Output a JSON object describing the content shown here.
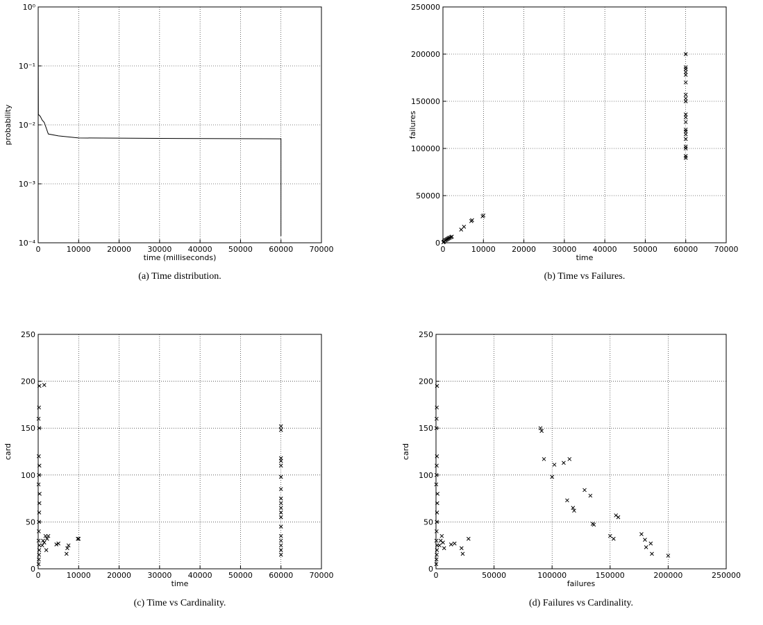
{
  "chart_data": [
    {
      "type": "line",
      "title": "(a) Time distribution.",
      "xlabel": "time (milliseconds)",
      "ylabel": "probability",
      "x": [
        0,
        0,
        50,
        500,
        1000,
        1500,
        2500,
        5000,
        10000,
        30000,
        60000,
        60000
      ],
      "values": [
        1,
        0.5,
        0.015,
        0.014,
        0.012,
        0.011,
        0.007,
        0.0065,
        0.006,
        0.0059,
        0.0058,
        0.00013
      ],
      "color": "#000000",
      "xlim": [
        0,
        70000
      ],
      "ylim": [
        0.0001,
        1
      ],
      "ylog": true,
      "grid": true,
      "xticks": [
        0,
        10000,
        20000,
        30000,
        40000,
        50000,
        60000,
        70000
      ],
      "yticks": [
        {
          "value": 0.0001,
          "label": "10⁻⁴"
        },
        {
          "value": 0.001,
          "label": "10⁻³"
        },
        {
          "value": 0.01,
          "label": "10⁻²"
        },
        {
          "value": 0.1,
          "label": "10⁻¹"
        },
        {
          "value": 1,
          "label": "10⁰"
        }
      ]
    },
    {
      "type": "scatter",
      "title": "(b) Time vs Failures.",
      "xlabel": "time",
      "ylabel": "failures",
      "x": [
        100,
        200,
        300,
        500,
        700,
        900,
        1100,
        1300,
        1500,
        1700,
        2000,
        2200,
        4500,
        5200,
        7000,
        7200,
        9800,
        10000,
        60000,
        60000,
        60000,
        60000,
        60000,
        60000,
        60000,
        60000,
        60000,
        60000,
        60000,
        60000,
        60000,
        60000,
        60000,
        60000,
        60000,
        60000,
        60000,
        60000
      ],
      "values": [
        500,
        1000,
        1500,
        2500,
        3000,
        3500,
        4000,
        4500,
        5000,
        5500,
        6000,
        6500,
        14000,
        17000,
        23000,
        24000,
        28000,
        29000,
        90000,
        92000,
        100000,
        102000,
        110000,
        115000,
        118000,
        120000,
        128000,
        133000,
        136000,
        150000,
        153000,
        157000,
        170000,
        178000,
        181000,
        184000,
        186000,
        200000
      ],
      "color": "#000000",
      "xlim": [
        0,
        70000
      ],
      "ylim": [
        0,
        250000
      ],
      "grid": true,
      "xticks": [
        0,
        10000,
        20000,
        30000,
        40000,
        50000,
        60000,
        70000
      ],
      "yticks": [
        0,
        50000,
        100000,
        150000,
        200000,
        250000
      ]
    },
    {
      "type": "scatter",
      "title": "(c) Time vs Cardinality.",
      "xlabel": "time",
      "ylabel": "card",
      "x": [
        100,
        150,
        200,
        250,
        300,
        100,
        150,
        200,
        250,
        300,
        350,
        100,
        200,
        300,
        150,
        250,
        100,
        200,
        300,
        1000,
        1200,
        1500,
        1800,
        2000,
        2200,
        2500,
        1500,
        4500,
        5000,
        7000,
        7200,
        7500,
        9800,
        10000,
        60000,
        60000,
        60000,
        60000,
        60000,
        60000,
        60000,
        60000,
        60000,
        60000,
        60000,
        60000,
        60000,
        60000,
        60000,
        60000,
        60000,
        60000
      ],
      "values": [
        5,
        10,
        15,
        20,
        25,
        30,
        40,
        50,
        60,
        70,
        80,
        90,
        100,
        110,
        120,
        150,
        160,
        172,
        195,
        25,
        30,
        28,
        35,
        20,
        32,
        35,
        196,
        26,
        27,
        16,
        22,
        25,
        32,
        32,
        15,
        20,
        25,
        30,
        35,
        45,
        55,
        60,
        65,
        70,
        75,
        85,
        98,
        110,
        115,
        118,
        148,
        152
      ],
      "color": "#000000",
      "xlim": [
        0,
        70000
      ],
      "ylim": [
        0,
        250
      ],
      "grid": true,
      "xticks": [
        0,
        10000,
        20000,
        30000,
        40000,
        50000,
        60000,
        70000
      ],
      "yticks": [
        0,
        50,
        100,
        150,
        200,
        250
      ]
    },
    {
      "type": "scatter",
      "title": "(d) Failures vs Cardinality.",
      "xlabel": "failures",
      "ylabel": "card",
      "x": [
        200,
        400,
        600,
        800,
        1000,
        300,
        500,
        700,
        900,
        1100,
        1300,
        200,
        400,
        600,
        800,
        300,
        500,
        700,
        900,
        3000,
        4000,
        5000,
        6000,
        7000,
        13000,
        16000,
        22000,
        23000,
        28000,
        90000,
        91000,
        93000,
        100000,
        102000,
        110000,
        115000,
        113000,
        118000,
        119000,
        128000,
        133000,
        135000,
        136000,
        150000,
        153000,
        155000,
        157000,
        177000,
        180000,
        181000,
        185000,
        186000,
        200000
      ],
      "values": [
        5,
        10,
        15,
        20,
        25,
        30,
        40,
        50,
        60,
        70,
        80,
        90,
        100,
        110,
        120,
        150,
        160,
        172,
        195,
        25,
        30,
        35,
        28,
        22,
        26,
        27,
        22,
        16,
        32,
        150,
        147,
        117,
        98,
        111,
        113,
        117,
        73,
        65,
        62,
        84,
        78,
        48,
        47,
        35,
        32,
        57,
        55,
        37,
        31,
        23,
        27,
        16,
        14
      ],
      "color": "#000000",
      "xlim": [
        0,
        250000
      ],
      "ylim": [
        0,
        250
      ],
      "grid": true,
      "xticks": [
        0,
        50000,
        100000,
        150000,
        200000,
        250000
      ],
      "yticks": [
        0,
        50,
        100,
        150,
        200,
        250
      ]
    }
  ]
}
